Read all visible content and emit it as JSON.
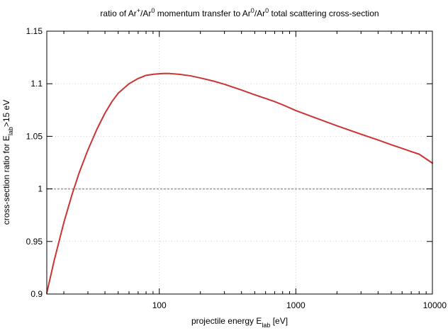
{
  "chart_data": {
    "type": "line",
    "title": {
      "segments": [
        {
          "text": "ratio of Ar"
        },
        {
          "text": "+",
          "sup": true
        },
        {
          "text": "/Ar"
        },
        {
          "text": "0",
          "sup": true
        },
        {
          "text": " momentum transfer to Ar"
        },
        {
          "text": "0",
          "sup": true
        },
        {
          "text": "/Ar"
        },
        {
          "text": "0",
          "sup": true
        },
        {
          "text": " total scattering cross-section"
        }
      ]
    },
    "xlabel": {
      "segments": [
        {
          "text": "projectile energy E"
        },
        {
          "text": "lab",
          "sub": true
        },
        {
          "text": " [eV]"
        }
      ]
    },
    "ylabel": {
      "segments": [
        {
          "text": "cross-section ratio for E"
        },
        {
          "text": "lab",
          "sub": true
        },
        {
          "text": ">15 eV"
        }
      ]
    },
    "x_scale": "log",
    "xlim": [
      15,
      10000
    ],
    "ylim": [
      0.9,
      1.15
    ],
    "xticks": [
      {
        "value": 100,
        "label": "100"
      },
      {
        "value": 1000,
        "label": "1000"
      },
      {
        "value": 10000,
        "label": "10000"
      }
    ],
    "yticks": [
      {
        "value": 0.9,
        "label": "0.9"
      },
      {
        "value": 0.95,
        "label": "0.95"
      },
      {
        "value": 1.0,
        "label": "1"
      },
      {
        "value": 1.05,
        "label": "1.05"
      },
      {
        "value": 1.1,
        "label": "1.1"
      },
      {
        "value": 1.15,
        "label": "1.15"
      }
    ],
    "grid": true,
    "reference_line": {
      "y": 1.0,
      "color": "#999999",
      "style": "dashed"
    },
    "series": [
      {
        "color": "#cc3333",
        "points": [
          [
            15,
            0.901
          ],
          [
            17,
            0.932
          ],
          [
            20,
            0.968
          ],
          [
            23,
            0.995
          ],
          [
            26,
            1.016
          ],
          [
            30,
            1.037
          ],
          [
            35,
            1.057
          ],
          [
            40,
            1.072
          ],
          [
            45,
            1.083
          ],
          [
            50,
            1.091
          ],
          [
            60,
            1.1
          ],
          [
            70,
            1.105
          ],
          [
            80,
            1.108
          ],
          [
            90,
            1.109
          ],
          [
            100,
            1.1095
          ],
          [
            110,
            1.1098
          ],
          [
            120,
            1.1097
          ],
          [
            140,
            1.109
          ],
          [
            170,
            1.1075
          ],
          [
            200,
            1.1055
          ],
          [
            250,
            1.1025
          ],
          [
            300,
            1.0995
          ],
          [
            400,
            1.094
          ],
          [
            500,
            1.0895
          ],
          [
            600,
            1.086
          ],
          [
            700,
            1.083
          ],
          [
            800,
            1.08
          ],
          [
            1000,
            1.0745
          ],
          [
            1500,
            1.066
          ],
          [
            2000,
            1.06
          ],
          [
            3000,
            1.052
          ],
          [
            4000,
            1.0465
          ],
          [
            5000,
            1.042
          ],
          [
            6000,
            1.0385
          ],
          [
            7000,
            1.0355
          ],
          [
            8000,
            1.033
          ],
          [
            10000,
            1.0245
          ]
        ]
      }
    ]
  }
}
